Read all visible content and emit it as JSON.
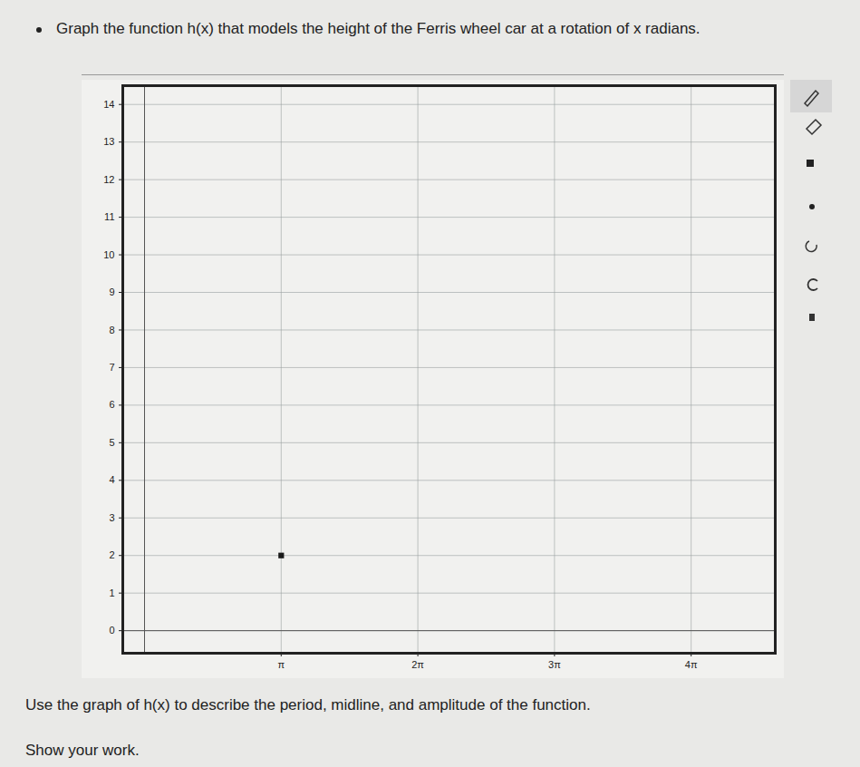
{
  "chart_data": {
    "type": "scatter",
    "title": "Graph the function h(x) that models the height of the Ferris wheel car at a rotation of x radians.",
    "annotations": [
      "Use the graph of h(x) to describe the period, midline, and amplitude of the function.",
      "Show your work."
    ],
    "x": [
      3.14159
    ],
    "values": [
      2
    ],
    "color": "#1a1a1a",
    "marker": "square",
    "xlim": [
      -0.5,
      14.5
    ],
    "ylim": [
      -0.6,
      14.5
    ],
    "xticks": [
      {
        "value": 3.14159,
        "label": "π"
      },
      {
        "value": 6.28319,
        "label": "2π"
      },
      {
        "value": 9.42478,
        "label": "3π"
      },
      {
        "value": 12.56637,
        "label": "4π"
      }
    ],
    "yticks": [
      0,
      1,
      2,
      3,
      4,
      5,
      6,
      7,
      8,
      9,
      10,
      11,
      12,
      13,
      14
    ],
    "grid": true
  }
}
